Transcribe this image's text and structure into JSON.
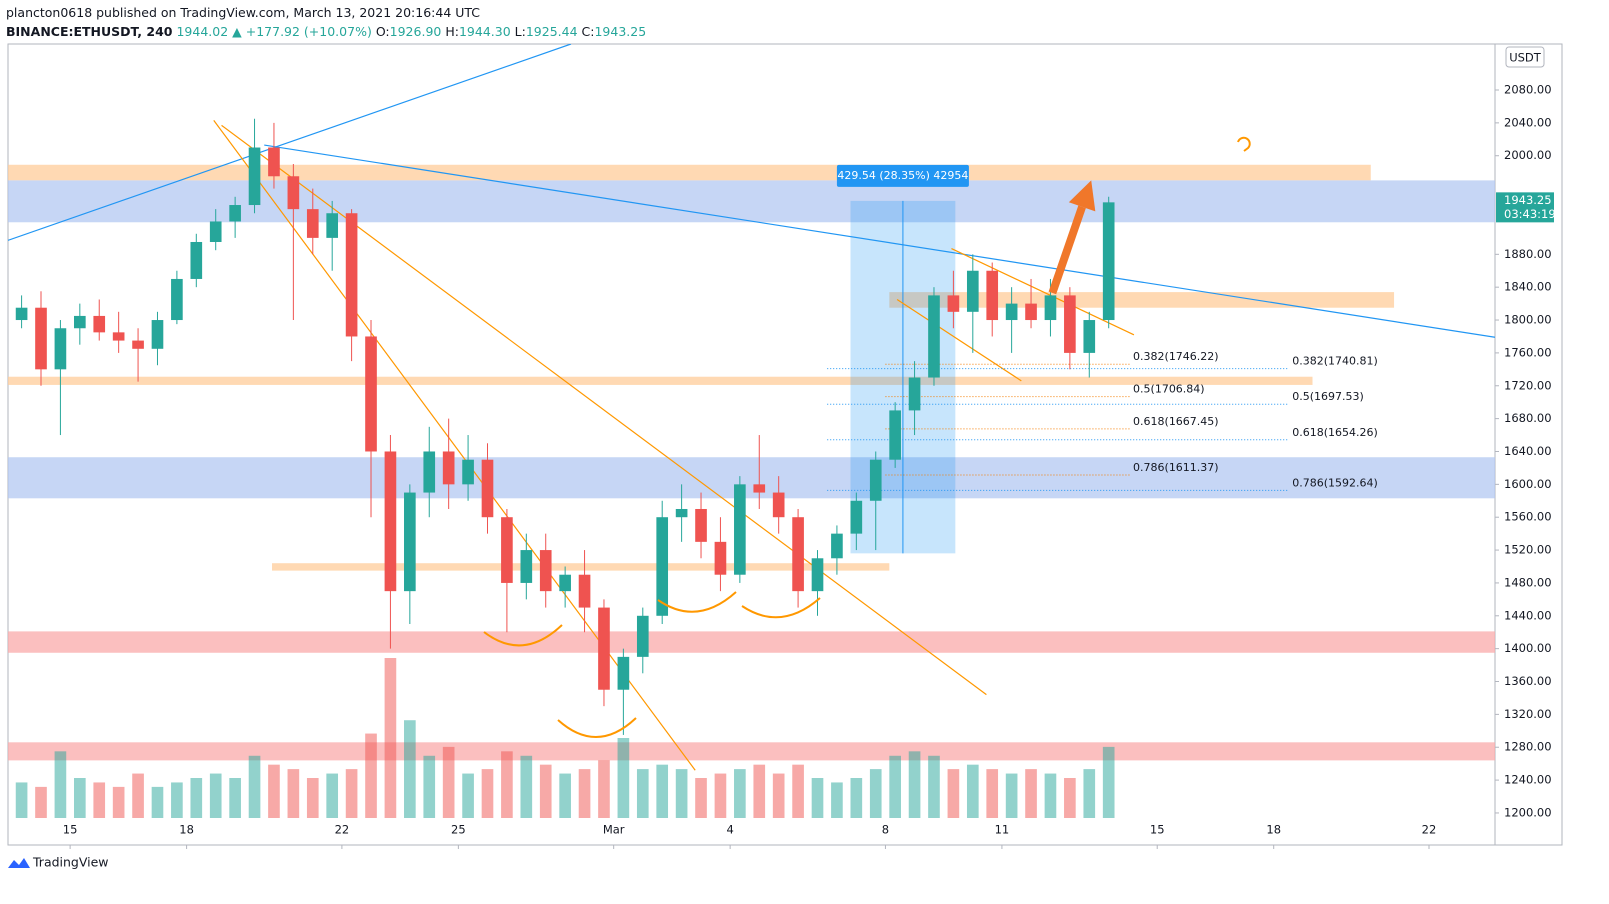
{
  "header": {
    "publisher": "plancton0618 published on TradingView.com, March 13, 2021 20:16:44 UTC",
    "symbol": "BINANCE:ETHUSDT, 240",
    "last": "1944.02",
    "change": "▲ +177.92 (+10.07%)",
    "o_label": "O:",
    "o": "1926.90",
    "h_label": "H:",
    "h": "1944.30",
    "l_label": "L:",
    "l": "1925.44",
    "c_label": "C:",
    "c": "1943.25"
  },
  "footer": {
    "brand": "TradingView"
  },
  "chart_data": {
    "type": "candlestick",
    "currency": "USDT",
    "countdown": "03:43:19",
    "up_color": "#26a69a",
    "down_color": "#ef5350",
    "x": [
      13.75,
      14.25,
      14.75,
      15.25,
      15.75,
      16.25,
      16.75,
      17.25,
      17.75,
      18.25,
      18.75,
      19.25,
      19.75,
      20.25,
      20.75,
      21.25,
      21.75,
      22.25,
      22.75,
      23.25,
      23.75,
      24.25,
      24.75,
      25.25,
      25.75,
      26.25,
      26.75,
      27.25,
      27.75,
      28.25,
      28.75,
      29.25,
      29.75,
      30.25,
      30.75,
      31.25,
      31.75,
      32.25,
      32.75,
      33.25,
      33.75,
      34.25,
      34.75,
      35.25,
      35.75,
      36.25,
      36.75,
      37.25,
      37.75,
      38.25,
      38.75,
      39.25,
      39.75,
      40.25,
      40.75,
      41.25,
      41.75
    ],
    "open": [
      1800,
      1815,
      1740,
      1790,
      1805,
      1785,
      1775,
      1765,
      1800,
      1850,
      1895,
      1920,
      1940,
      2010,
      1975,
      1935,
      1900,
      1930,
      1780,
      1640,
      1470,
      1590,
      1640,
      1600,
      1630,
      1560,
      1480,
      1520,
      1470,
      1490,
      1450,
      1350,
      1390,
      1440,
      1560,
      1570,
      1530,
      1490,
      1600,
      1590,
      1560,
      1470,
      1510,
      1540,
      1580,
      1630,
      1690,
      1730,
      1830,
      1810,
      1860,
      1800,
      1820,
      1800,
      1830,
      1760,
      1800
    ],
    "high": [
      1830,
      1835,
      1800,
      1820,
      1825,
      1810,
      1790,
      1810,
      1860,
      1905,
      1935,
      1950,
      2045,
      2040,
      1990,
      1960,
      1945,
      1935,
      1800,
      1660,
      1600,
      1670,
      1680,
      1660,
      1650,
      1570,
      1540,
      1540,
      1500,
      1520,
      1460,
      1400,
      1450,
      1580,
      1600,
      1590,
      1560,
      1610,
      1660,
      1610,
      1570,
      1520,
      1550,
      1590,
      1640,
      1700,
      1750,
      1840,
      1860,
      1880,
      1870,
      1840,
      1850,
      1850,
      1840,
      1810,
      1950
    ],
    "low": [
      1790,
      1720,
      1660,
      1770,
      1775,
      1760,
      1725,
      1745,
      1795,
      1840,
      1885,
      1900,
      1930,
      1960,
      1800,
      1880,
      1860,
      1750,
      1560,
      1400,
      1430,
      1560,
      1570,
      1580,
      1540,
      1420,
      1460,
      1450,
      1450,
      1420,
      1330,
      1295,
      1370,
      1430,
      1530,
      1510,
      1470,
      1480,
      1570,
      1540,
      1450,
      1440,
      1490,
      1520,
      1520,
      1620,
      1660,
      1720,
      1790,
      1760,
      1780,
      1760,
      1790,
      1780,
      1740,
      1730,
      1790
    ],
    "close": [
      1815,
      1740,
      1790,
      1805,
      1785,
      1775,
      1765,
      1800,
      1850,
      1895,
      1920,
      1940,
      2010,
      1975,
      1935,
      1900,
      1930,
      1780,
      1640,
      1470,
      1590,
      1640,
      1600,
      1630,
      1560,
      1480,
      1520,
      1470,
      1490,
      1450,
      1350,
      1390,
      1440,
      1560,
      1570,
      1530,
      1490,
      1600,
      1590,
      1560,
      1470,
      1510,
      1540,
      1580,
      1630,
      1690,
      1730,
      1830,
      1810,
      1860,
      1800,
      1820,
      1800,
      1830,
      1760,
      1800,
      1943.25
    ],
    "volume": [
      40,
      35,
      75,
      45,
      40,
      35,
      50,
      35,
      40,
      45,
      50,
      45,
      70,
      60,
      55,
      45,
      50,
      55,
      95,
      180,
      110,
      70,
      80,
      50,
      55,
      75,
      70,
      60,
      50,
      55,
      65,
      90,
      55,
      60,
      55,
      45,
      50,
      55,
      60,
      50,
      60,
      45,
      40,
      45,
      55,
      70,
      75,
      70,
      55,
      60,
      55,
      50,
      55,
      50,
      45,
      55,
      80
    ],
    "xlim": [
      13.4,
      51.7
    ],
    "ylim": [
      1161,
      2136
    ],
    "xticks": [
      15,
      18,
      22,
      25,
      {
        "value": 29,
        "label": "Mar"
      },
      {
        "value": 32,
        "label": "4"
      },
      {
        "value": 36,
        "label": "8"
      },
      {
        "value": 39,
        "label": "11"
      },
      {
        "value": 43,
        "label": "15"
      },
      {
        "value": 46,
        "label": "18"
      },
      {
        "value": 50,
        "label": "22"
      }
    ],
    "yticks": [
      {
        "value": 1200,
        "label": "1200.00"
      },
      {
        "value": 1240,
        "label": "1240.00"
      },
      {
        "value": 1280,
        "label": "1280.00"
      },
      {
        "value": 1320,
        "label": "1320.00"
      },
      {
        "value": 1360,
        "label": "1360.00"
      },
      {
        "value": 1400,
        "label": "1400.00"
      },
      {
        "value": 1440,
        "label": "1440.00"
      },
      {
        "value": 1480,
        "label": "1480.00"
      },
      {
        "value": 1520,
        "label": "1520.00"
      },
      {
        "value": 1560,
        "label": "1560.00"
      },
      {
        "value": 1600,
        "label": "1600.00"
      },
      {
        "value": 1640,
        "label": "1640.00"
      },
      {
        "value": 1680,
        "label": "1680.00"
      },
      {
        "value": 1720,
        "label": "1720.00"
      },
      {
        "value": 1760,
        "label": "1760.00"
      },
      {
        "value": 1800,
        "label": "1800.00"
      },
      {
        "value": 1840,
        "label": "1840.00"
      },
      {
        "value": 1880,
        "label": "1880.00"
      },
      {
        "value": 2000,
        "label": "2000.00"
      },
      {
        "value": 2040,
        "label": "2040.00"
      },
      {
        "value": 2080,
        "label": "2080.00"
      }
    ],
    "zones": [
      {
        "x": [
          13.4,
          48.5
        ],
        "y": [
          1970,
          1989
        ],
        "color": "#ffcc99"
      },
      {
        "x": [
          13.4,
          51.7
        ],
        "y": [
          1919,
          1970
        ],
        "color": "#b3c8f2"
      },
      {
        "x": [
          36.1,
          49.1
        ],
        "y": [
          1815,
          1834
        ],
        "color": "#ffcc99"
      },
      {
        "x": [
          13.4,
          47
        ],
        "y": [
          1721,
          1731
        ],
        "color": "#ffcc99"
      },
      {
        "x": [
          13.4,
          51.7
        ],
        "y": [
          1583,
          1633
        ],
        "color": "#b3c8f2"
      },
      {
        "x": [
          20.2,
          36.1
        ],
        "y": [
          1495,
          1504
        ],
        "color": "#ffcc99"
      },
      {
        "x": [
          13.4,
          51.7
        ],
        "y": [
          1395,
          1421
        ],
        "color": "#f9a9a9"
      },
      {
        "x": [
          13.4,
          51.7
        ],
        "y": [
          1264,
          1286
        ],
        "color": "#f9a9a9"
      }
    ],
    "lines": [
      {
        "color": "#2196f3",
        "points": [
          [
            13.4,
            1897
          ],
          [
            27.9,
            2136
          ]
        ]
      },
      {
        "color": "#2196f3",
        "points": [
          [
            20,
            2013
          ],
          [
            51.7,
            1779
          ]
        ]
      },
      {
        "color": "#ff9800",
        "points": [
          [
            18.7,
            2043
          ],
          [
            31.1,
            1252
          ]
        ]
      },
      {
        "color": "#ff9800",
        "points": [
          [
            18.9,
            2037
          ],
          [
            38.6,
            1344
          ]
        ]
      },
      {
        "color": "#ff9800",
        "points": [
          [
            37.7,
            1887
          ],
          [
            42.4,
            1782
          ]
        ]
      },
      {
        "color": "#ff9800",
        "points": [
          [
            36.3,
            1825
          ],
          [
            39.5,
            1726
          ]
        ]
      }
    ],
    "fib": [
      {
        "label": "0.382(1746.22)",
        "level": 1746.22,
        "x": [
          36,
          42.3
        ],
        "color": "#f57c00"
      },
      {
        "label": "0.5(1706.84)",
        "level": 1706.84,
        "x": [
          36,
          42.3
        ],
        "color": "#f57c00"
      },
      {
        "label": "0.618(1667.45)",
        "level": 1667.45,
        "x": [
          36,
          42.3
        ],
        "color": "#f57c00"
      },
      {
        "label": "0.786(1611.37)",
        "level": 1611.37,
        "x": [
          36,
          42.3
        ],
        "color": "#f57c00"
      },
      {
        "label": "0.382(1740.81)",
        "level": 1740.81,
        "x": [
          34.5,
          46.4
        ],
        "color": "#2196f3"
      },
      {
        "label": "0.5(1697.53)",
        "level": 1697.53,
        "x": [
          34.5,
          46.4
        ],
        "color": "#2196f3"
      },
      {
        "label": "0.618(1654.26)",
        "level": 1654.26,
        "x": [
          34.5,
          46.4
        ],
        "color": "#2196f3"
      },
      {
        "label": "0.786(1592.64)",
        "level": 1592.64,
        "x": [
          34.5,
          46.4
        ],
        "color": "#2196f3"
      }
    ],
    "measure": {
      "label": "429.54 (28.35%) 42954",
      "x": [
        35.1,
        37.8
      ],
      "y": [
        1516,
        1945
      ]
    },
    "arrow": {
      "color": "#f0772a",
      "points": [
        [
          40.3,
          1833
        ],
        [
          41.3,
          1970
        ]
      ]
    }
  }
}
